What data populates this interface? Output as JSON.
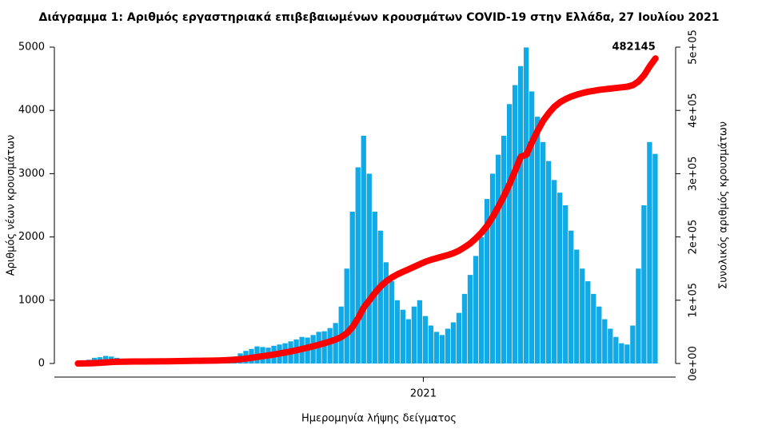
{
  "chart_data": {
    "type": "bar-line",
    "title": "Διάγραμμα 1: Αριθμός εργαστηριακά επιβεβαιωμένων κρουσμάτων COVID-19 στην Ελλάδα, 27 Ιουλίου 2021",
    "x_label": "Ημερομηνία λήψης δείγματος",
    "y_label": "Αριθμός νέων κρουσμάτων",
    "y2_label": "Συνολικός αριθμός κρουσμάτων",
    "x": [
      2,
      7,
      12,
      17,
      22,
      27,
      32,
      37,
      42,
      47,
      52,
      57,
      62,
      67,
      72,
      77,
      82,
      87,
      92,
      97,
      102,
      107,
      112,
      117,
      122,
      127,
      132,
      137,
      142,
      147,
      152,
      157,
      162,
      167,
      172,
      177,
      182,
      187,
      192,
      197,
      202,
      207,
      212,
      217,
      222,
      227,
      232,
      237,
      242,
      247,
      252,
      257,
      262,
      267,
      272,
      277,
      282,
      287,
      292,
      297,
      302,
      307,
      312,
      317,
      322,
      327,
      332,
      337,
      342,
      347,
      352,
      357,
      362,
      367,
      372,
      377,
      382,
      387,
      392,
      397,
      402,
      407,
      412,
      417,
      422,
      427,
      432,
      437,
      442,
      447,
      452,
      457,
      462,
      467,
      472,
      477,
      482,
      487,
      492,
      497,
      502,
      507,
      512,
      517
    ],
    "xlim": [
      -19,
      535
    ],
    "xticks": [
      {
        "value": 310,
        "label": "2021"
      }
    ],
    "ylim": [
      0,
      5000
    ],
    "yticks": [
      0,
      1000,
      2000,
      3000,
      4000,
      5000
    ],
    "y2lim": [
      0,
      500000
    ],
    "y2ticks": [
      {
        "value": 0,
        "label": "0e+00"
      },
      {
        "value": 100000,
        "label": "1e+05"
      },
      {
        "value": 200000,
        "label": "2e+05"
      },
      {
        "value": 300000,
        "label": "3e+05"
      },
      {
        "value": 400000,
        "label": "4e+05"
      },
      {
        "value": 500000,
        "label": "5e+05"
      }
    ],
    "series": [
      {
        "type": "bar",
        "color": "#12aae6",
        "values": [
          10,
          30,
          60,
          90,
          100,
          120,
          110,
          90,
          60,
          30,
          20,
          15,
          10,
          10,
          15,
          20,
          20,
          30,
          25,
          20,
          25,
          20,
          30,
          25,
          35,
          40,
          60,
          70,
          110,
          160,
          200,
          230,
          270,
          260,
          250,
          280,
          300,
          320,
          350,
          380,
          420,
          410,
          450,
          500,
          510,
          560,
          640,
          900,
          1500,
          2400,
          3100,
          3600,
          3000,
          2400,
          2100,
          1600,
          1300,
          1000,
          850,
          700,
          900,
          1000,
          750,
          600,
          500,
          450,
          550,
          650,
          800,
          1100,
          1400,
          1700,
          2000,
          2600,
          3000,
          3300,
          3600,
          4100,
          4400,
          4700,
          4995,
          4300,
          3900,
          3500,
          3200,
          2900,
          2700,
          2500,
          2100,
          1800,
          1500,
          1300,
          1100,
          900,
          700,
          550,
          420,
          320,
          300,
          600,
          1500,
          2500,
          3500,
          3313
        ]
      },
      {
        "type": "line",
        "axis": "y2",
        "color": "#ff0000",
        "values": [
          20,
          100,
          300,
          700,
          1100,
          1700,
          2300,
          2700,
          2900,
          3000,
          3100,
          3150,
          3200,
          3250,
          3300,
          3400,
          3500,
          3700,
          3800,
          3900,
          4050,
          4200,
          4300,
          4450,
          4600,
          4800,
          5100,
          5500,
          6000,
          6800,
          7800,
          9000,
          10300,
          11600,
          12900,
          14300,
          15800,
          17400,
          19100,
          21000,
          23000,
          25100,
          27300,
          29700,
          32200,
          34900,
          38000,
          42000,
          48000,
          58000,
          72000,
          89000,
          100000,
          112000,
          122000,
          130000,
          136000,
          141000,
          145000,
          149000,
          153000,
          157000,
          161000,
          164000,
          166500,
          169000,
          171500,
          174500,
          178500,
          184000,
          190000,
          198000,
          207000,
          218000,
          232000,
          248000,
          265000,
          284000,
          305000,
          327000,
          330000,
          350000,
          368000,
          384000,
          396000,
          406000,
          413000,
          418000,
          422000,
          425000,
          427500,
          429500,
          431000,
          432500,
          433500,
          434500,
          435500,
          436500,
          437500,
          440000,
          446000,
          456000,
          470000,
          482145
        ]
      }
    ]
  }
}
